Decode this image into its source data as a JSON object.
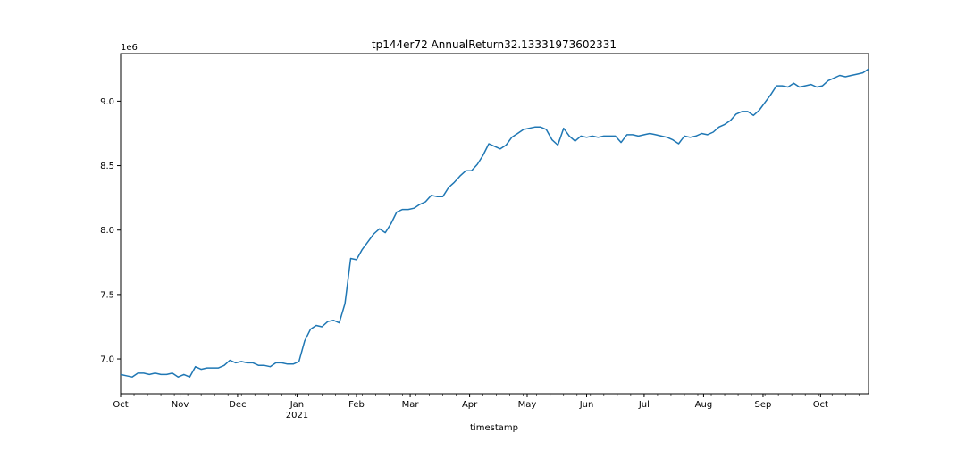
{
  "chart_data": {
    "type": "line",
    "title": "tp144er72 AnnualReturn32.13331973602331",
    "xlabel": "timestamp",
    "ylabel": "",
    "y_scale_label": "1e6",
    "xlim": [
      "2020-10-01",
      "2021-10-26"
    ],
    "ylim": [
      6.73,
      9.37
    ],
    "yticks": [
      7.0,
      7.5,
      8.0,
      8.5,
      9.0
    ],
    "ytick_labels": [
      "7.0",
      "7.5",
      "8.0",
      "8.5",
      "9.0"
    ],
    "xticks": [
      {
        "date": "2020-10-01",
        "label": "Oct"
      },
      {
        "date": "2020-11-01",
        "label": "Nov"
      },
      {
        "date": "2020-12-01",
        "label": "Dec"
      },
      {
        "date": "2021-01-01",
        "label": "Jan",
        "sublabel": "2021"
      },
      {
        "date": "2021-02-01",
        "label": "Feb"
      },
      {
        "date": "2021-03-01",
        "label": "Mar"
      },
      {
        "date": "2021-04-01",
        "label": "Apr"
      },
      {
        "date": "2021-05-01",
        "label": "May"
      },
      {
        "date": "2021-06-01",
        "label": "Jun"
      },
      {
        "date": "2021-07-01",
        "label": "Jul"
      },
      {
        "date": "2021-08-01",
        "label": "Aug"
      },
      {
        "date": "2021-09-01",
        "label": "Sep"
      },
      {
        "date": "2021-10-01",
        "label": "Oct"
      }
    ],
    "grid": false,
    "line_color": "#1f77b4",
    "series": [
      {
        "x": [
          "2020-10-01",
          "2020-10-04",
          "2020-10-07",
          "2020-10-10",
          "2020-10-13",
          "2020-10-16",
          "2020-10-19",
          "2020-10-22",
          "2020-10-25",
          "2020-10-28",
          "2020-10-31",
          "2020-11-03",
          "2020-11-06",
          "2020-11-09",
          "2020-11-12",
          "2020-11-15",
          "2020-11-18",
          "2020-11-21",
          "2020-11-24",
          "2020-11-27",
          "2020-11-30",
          "2020-12-03",
          "2020-12-06",
          "2020-12-09",
          "2020-12-12",
          "2020-12-15",
          "2020-12-18",
          "2020-12-21",
          "2020-12-24",
          "2020-12-27",
          "2020-12-30",
          "2021-01-02",
          "2021-01-05",
          "2021-01-08",
          "2021-01-11",
          "2021-01-14",
          "2021-01-17",
          "2021-01-20",
          "2021-01-23",
          "2021-01-26",
          "2021-01-29",
          "2021-02-01",
          "2021-02-04",
          "2021-02-07",
          "2021-02-10",
          "2021-02-13",
          "2021-02-16",
          "2021-02-19",
          "2021-02-22",
          "2021-02-25",
          "2021-02-28",
          "2021-03-03",
          "2021-03-06",
          "2021-03-09",
          "2021-03-12",
          "2021-03-15",
          "2021-03-18",
          "2021-03-21",
          "2021-03-24",
          "2021-03-27",
          "2021-03-30",
          "2021-04-02",
          "2021-04-05",
          "2021-04-08",
          "2021-04-11",
          "2021-04-14",
          "2021-04-17",
          "2021-04-20",
          "2021-04-23",
          "2021-04-26",
          "2021-04-29",
          "2021-05-02",
          "2021-05-05",
          "2021-05-08",
          "2021-05-11",
          "2021-05-14",
          "2021-05-17",
          "2021-05-20",
          "2021-05-23",
          "2021-05-26",
          "2021-05-29",
          "2021-06-01",
          "2021-06-04",
          "2021-06-07",
          "2021-06-10",
          "2021-06-13",
          "2021-06-16",
          "2021-06-19",
          "2021-06-22",
          "2021-06-25",
          "2021-06-28",
          "2021-07-01",
          "2021-07-04",
          "2021-07-07",
          "2021-07-10",
          "2021-07-13",
          "2021-07-16",
          "2021-07-19",
          "2021-07-22",
          "2021-07-25",
          "2021-07-28",
          "2021-07-31",
          "2021-08-03",
          "2021-08-06",
          "2021-08-09",
          "2021-08-12",
          "2021-08-15",
          "2021-08-18",
          "2021-08-21",
          "2021-08-24",
          "2021-08-27",
          "2021-08-30",
          "2021-09-02",
          "2021-09-05",
          "2021-09-08",
          "2021-09-11",
          "2021-09-14",
          "2021-09-17",
          "2021-09-20",
          "2021-09-23",
          "2021-09-26",
          "2021-09-29",
          "2021-10-02",
          "2021-10-05",
          "2021-10-08",
          "2021-10-11",
          "2021-10-14",
          "2021-10-17",
          "2021-10-20",
          "2021-10-23",
          "2021-10-26"
        ],
        "y": [
          6.88,
          6.87,
          6.86,
          6.89,
          6.89,
          6.88,
          6.89,
          6.88,
          6.88,
          6.89,
          6.86,
          6.88,
          6.86,
          6.94,
          6.92,
          6.93,
          6.93,
          6.93,
          6.95,
          6.99,
          6.97,
          6.98,
          6.97,
          6.97,
          6.95,
          6.95,
          6.94,
          6.97,
          6.97,
          6.96,
          6.96,
          6.98,
          7.14,
          7.23,
          7.26,
          7.25,
          7.29,
          7.3,
          7.28,
          7.43,
          7.78,
          7.77,
          7.85,
          7.91,
          7.97,
          8.01,
          7.98,
          8.05,
          8.14,
          8.16,
          8.16,
          8.17,
          8.2,
          8.22,
          8.27,
          8.26,
          8.26,
          8.33,
          8.37,
          8.42,
          8.46,
          8.46,
          8.51,
          8.58,
          8.67,
          8.65,
          8.63,
          8.66,
          8.72,
          8.75,
          8.78,
          8.79,
          8.8,
          8.8,
          8.78,
          8.7,
          8.66,
          8.79,
          8.73,
          8.69,
          8.73,
          8.72,
          8.73,
          8.72,
          8.73,
          8.73,
          8.73,
          8.68,
          8.74,
          8.74,
          8.73,
          8.74,
          8.75,
          8.74,
          8.73,
          8.72,
          8.7,
          8.67,
          8.73,
          8.72,
          8.73,
          8.75,
          8.74,
          8.76,
          8.8,
          8.82,
          8.85,
          8.9,
          8.92,
          8.92,
          8.89,
          8.93,
          8.99,
          9.05,
          9.12,
          9.12,
          9.11,
          9.14,
          9.11,
          9.12,
          9.13,
          9.11,
          9.12,
          9.16,
          9.18,
          9.2,
          9.19,
          9.2,
          9.21,
          9.22,
          9.25
        ]
      }
    ]
  }
}
